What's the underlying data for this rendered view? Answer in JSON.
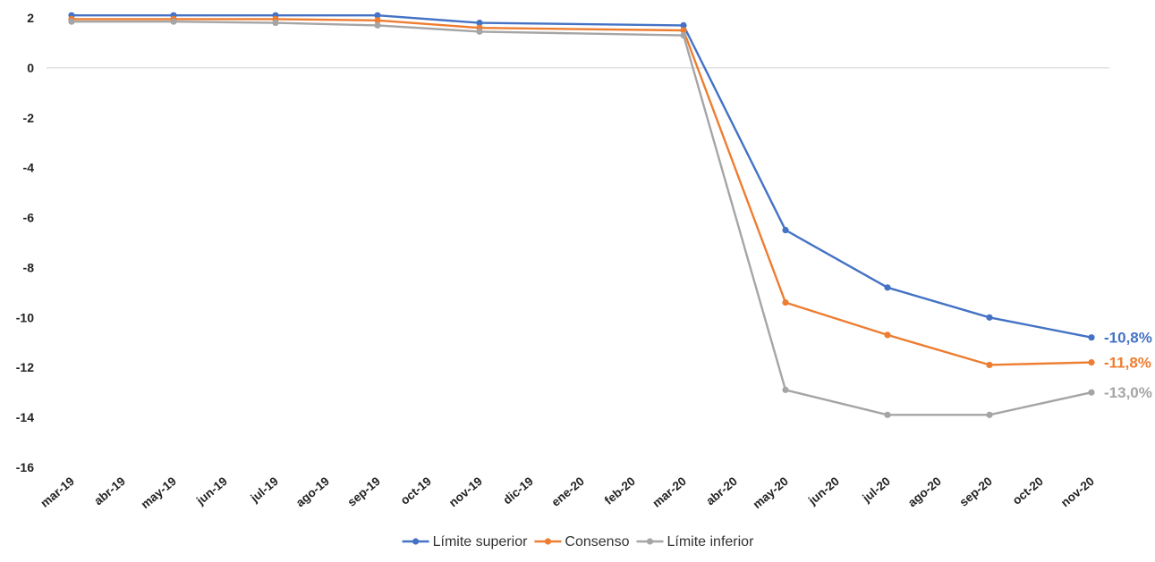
{
  "chart_data": {
    "type": "line",
    "title": "",
    "xlabel": "",
    "ylabel": "",
    "x": [
      "mar-19",
      "abr-19",
      "may-19",
      "jun-19",
      "jul-19",
      "ago-19",
      "sep-19",
      "oct-19",
      "nov-19",
      "dic-19",
      "ene-20",
      "feb-20",
      "mar-20",
      "abr-20",
      "may-20",
      "jun-20",
      "jul-20",
      "ago-20",
      "sep-20",
      "oct-20",
      "nov-20"
    ],
    "ylim": [
      -16,
      2
    ],
    "yticks": [
      "2",
      "0",
      "-2",
      "-4",
      "-6",
      "-8",
      "-10",
      "-12",
      "-14",
      "-16"
    ],
    "grid": false,
    "legend_position": "bottom",
    "series": [
      {
        "name": "Límite superior",
        "color": "#4472C4",
        "points": [
          {
            "x": "mar-19",
            "y": 2.1
          },
          {
            "x": "may-19",
            "y": 2.1
          },
          {
            "x": "jul-19",
            "y": 2.1
          },
          {
            "x": "sep-19",
            "y": 2.1
          },
          {
            "x": "nov-19",
            "y": 1.8
          },
          {
            "x": "mar-20",
            "y": 1.7
          },
          {
            "x": "may-20",
            "y": -6.5
          },
          {
            "x": "jul-20",
            "y": -8.8
          },
          {
            "x": "sep-20",
            "y": -10.0
          },
          {
            "x": "nov-20",
            "y": -10.8
          }
        ],
        "end_label": "-10,8%"
      },
      {
        "name": "Consenso",
        "color": "#ED7D31",
        "points": [
          {
            "x": "mar-19",
            "y": 1.95
          },
          {
            "x": "may-19",
            "y": 1.95
          },
          {
            "x": "jul-19",
            "y": 1.95
          },
          {
            "x": "sep-19",
            "y": 1.9
          },
          {
            "x": "nov-19",
            "y": 1.6
          },
          {
            "x": "mar-20",
            "y": 1.5
          },
          {
            "x": "may-20",
            "y": -9.4
          },
          {
            "x": "jul-20",
            "y": -10.7
          },
          {
            "x": "sep-20",
            "y": -11.9
          },
          {
            "x": "nov-20",
            "y": -11.8
          }
        ],
        "end_label": "-11,8%"
      },
      {
        "name": "Límite inferior",
        "color": "#A5A5A5",
        "points": [
          {
            "x": "mar-19",
            "y": 1.85
          },
          {
            "x": "may-19",
            "y": 1.85
          },
          {
            "x": "jul-19",
            "y": 1.8
          },
          {
            "x": "sep-19",
            "y": 1.7
          },
          {
            "x": "nov-19",
            "y": 1.45
          },
          {
            "x": "mar-20",
            "y": 1.3
          },
          {
            "x": "may-20",
            "y": -12.9
          },
          {
            "x": "jul-20",
            "y": -13.9
          },
          {
            "x": "sep-20",
            "y": -13.9
          },
          {
            "x": "nov-20",
            "y": -13.0
          }
        ],
        "end_label": "-13,0%"
      }
    ]
  }
}
